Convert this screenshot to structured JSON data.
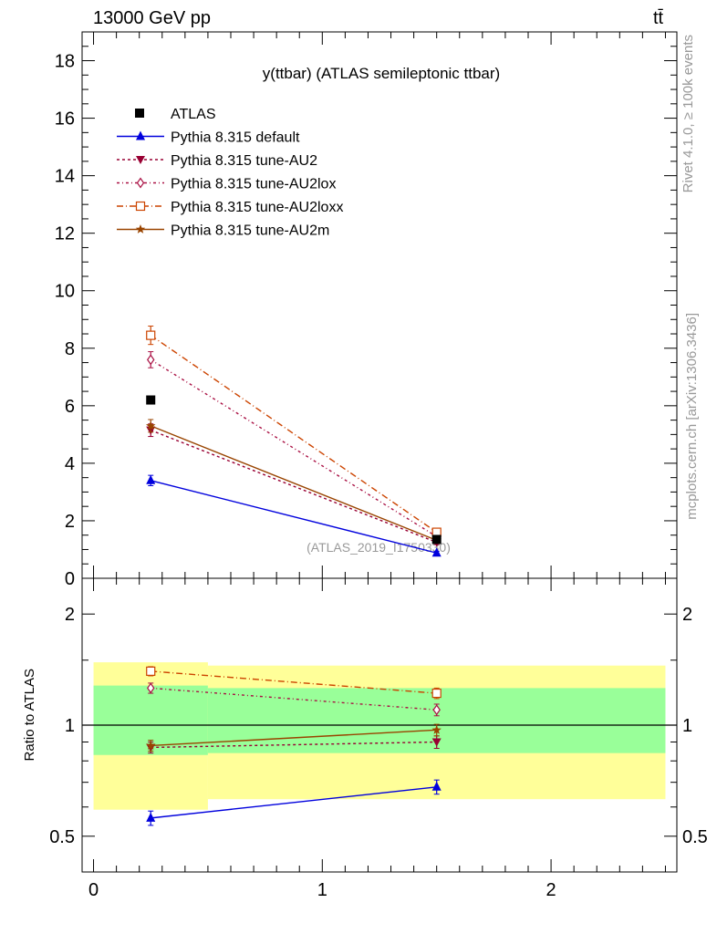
{
  "header": {
    "energy_label": "13000 GeV pp",
    "process_label": "tt̄"
  },
  "side_labels": {
    "rivet": "Rivet 4.1.0, ≥ 100k events",
    "mcplots": "mcplots.cern.ch [arXiv:1306.3436]"
  },
  "chart_data": [
    {
      "type": "scatter",
      "panel": "main",
      "title": "y(ttbar) (ATLAS semileptonic ttbar)",
      "watermark": "(ATLAS_2019_I1750330)",
      "xlim": [
        -0.05,
        2.55
      ],
      "ylim": [
        0,
        19
      ],
      "yticks": [
        0,
        2,
        4,
        6,
        8,
        10,
        12,
        14,
        16,
        18
      ],
      "ytick_labels": [
        "0",
        "2",
        "4",
        "6",
        "8",
        "10",
        "12",
        "14",
        "16",
        "18"
      ],
      "x": [
        0.25,
        1.5
      ],
      "data": {
        "name": "ATLAS",
        "color": "#000000",
        "values": [
          6.2,
          1.35
        ]
      },
      "series": [
        {
          "name": "Pythia 8.315 default",
          "color": "#0000dd",
          "dash": "",
          "marker": "triangle-up",
          "values": [
            3.4,
            0.88
          ],
          "errors": [
            0.18,
            0.06
          ]
        },
        {
          "name": "Pythia 8.315 tune-AU2",
          "color": "#990033",
          "dash": "3,3",
          "marker": "triangle-down",
          "values": [
            5.15,
            1.25
          ],
          "errors": [
            0.22,
            0.08
          ]
        },
        {
          "name": "Pythia 8.315 tune-AU2lox",
          "color": "#aa1144",
          "dash": "3,3,1,3",
          "marker": "diamond-open",
          "values": [
            7.6,
            1.45
          ],
          "errors": [
            0.28,
            0.09
          ]
        },
        {
          "name": "Pythia 8.315 tune-AU2loxx",
          "color": "#cc4400",
          "dash": "7,3,1,3",
          "marker": "square-open",
          "values": [
            8.45,
            1.6
          ],
          "errors": [
            0.32,
            0.1
          ]
        },
        {
          "name": "Pythia 8.315 tune-AU2m",
          "color": "#994400",
          "dash": "",
          "marker": "star",
          "values": [
            5.3,
            1.32
          ],
          "errors": [
            0.22,
            0.08
          ]
        }
      ]
    },
    {
      "type": "scatter",
      "panel": "ratio",
      "ylabel": "Ratio to ATLAS",
      "ylim": [
        0.4,
        2.5
      ],
      "log_y": true,
      "yticks": [
        0.5,
        1,
        2
      ],
      "ytick_labels": [
        "0.5",
        "1",
        "2"
      ],
      "xticks": [
        0,
        1,
        2
      ],
      "xtick_labels": [
        "0",
        "1",
        "2"
      ],
      "x": [
        0.25,
        1.5
      ],
      "bins": [
        [
          0,
          0.5
        ],
        [
          0.5,
          2.5
        ]
      ],
      "band_total": [
        [
          0.59,
          1.48
        ],
        [
          0.63,
          1.45
        ]
      ],
      "band_stat": [
        [
          0.83,
          1.28
        ],
        [
          0.84,
          1.26
        ]
      ],
      "series": [
        {
          "name": "Pythia 8.315 default",
          "values": [
            0.56,
            0.68
          ],
          "errors": [
            0.025,
            0.03
          ]
        },
        {
          "name": "Pythia 8.315 tune-AU2",
          "values": [
            0.87,
            0.9
          ],
          "errors": [
            0.03,
            0.035
          ]
        },
        {
          "name": "Pythia 8.315 tune-AU2lox",
          "values": [
            1.26,
            1.1
          ],
          "errors": [
            0.04,
            0.04
          ]
        },
        {
          "name": "Pythia 8.315 tune-AU2loxx",
          "values": [
            1.4,
            1.22
          ],
          "errors": [
            0.04,
            0.04
          ]
        },
        {
          "name": "Pythia 8.315 tune-AU2m",
          "values": [
            0.88,
            0.97
          ],
          "errors": [
            0.03,
            0.035
          ]
        }
      ]
    }
  ]
}
